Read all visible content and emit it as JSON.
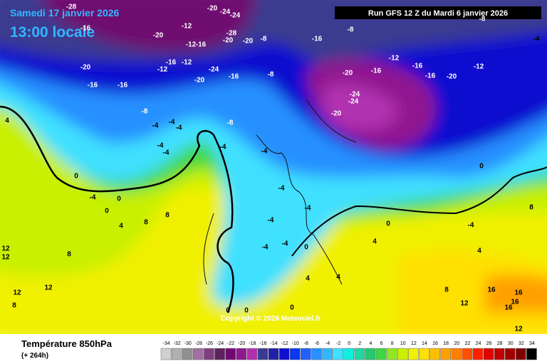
{
  "header": {
    "date": "Samedi 17 janvier 2026",
    "time": "13:00 locale",
    "run": "Run GFS 12 Z du Mardi 6 janvier 2026"
  },
  "footer": {
    "field": "Température 850hPa",
    "lead": "(+ 264h)",
    "copyright": "Copyright © 2026 Meteociel.fr"
  },
  "map": {
    "contour_labels": [
      -28,
      -16,
      -20,
      -12,
      -20,
      -24,
      -24,
      -28,
      -20,
      -20,
      -12,
      -16,
      -16,
      -12,
      -12,
      -20,
      -16,
      -16,
      -24,
      -20,
      -16,
      -8,
      -8,
      -16,
      -8,
      -16,
      -20,
      -12,
      -16,
      -16,
      -20,
      -12,
      -24,
      -24,
      -20,
      -8,
      -8,
      -4,
      -4,
      -4,
      -4,
      -4,
      -4,
      -4,
      0,
      -4,
      0,
      0,
      8,
      8,
      4,
      -4,
      -4,
      -4,
      -4,
      -4,
      0,
      0,
      4,
      4,
      4,
      8,
      12,
      12,
      12,
      8,
      16,
      16,
      16,
      12,
      16,
      12,
      8,
      0,
      -4,
      -8,
      -4,
      -4,
      4,
      4,
      0,
      0,
      0,
      8,
      12
    ]
  },
  "legend": {
    "values": [
      -34,
      -32,
      -30,
      -28,
      -26,
      -24,
      -22,
      -20,
      -18,
      -16,
      -14,
      -12,
      -10,
      -8,
      -6,
      -4,
      -2,
      0,
      2,
      4,
      6,
      8,
      10,
      12,
      14,
      16,
      18,
      20,
      22,
      24,
      26,
      28,
      30,
      32,
      34
    ],
    "colors": [
      "#d0d0d0",
      "#b0b0b0",
      "#909090",
      "#a070a0",
      "#804080",
      "#602060",
      "#700a70",
      "#901890",
      "#b030b0",
      "#3a3a90",
      "#2020a8",
      "#1010d0",
      "#0838f0",
      "#2060ff",
      "#2890ff",
      "#30b8ff",
      "#40e0ff",
      "#10f0e0",
      "#20d8a0",
      "#28c870",
      "#40d840",
      "#90e820",
      "#c8f000",
      "#f0f000",
      "#ffe000",
      "#ffc000",
      "#ffa000",
      "#ff8000",
      "#ff5000",
      "#ff2000",
      "#e00000",
      "#c00000",
      "#a00000",
      "#800000",
      "#000000"
    ]
  }
}
